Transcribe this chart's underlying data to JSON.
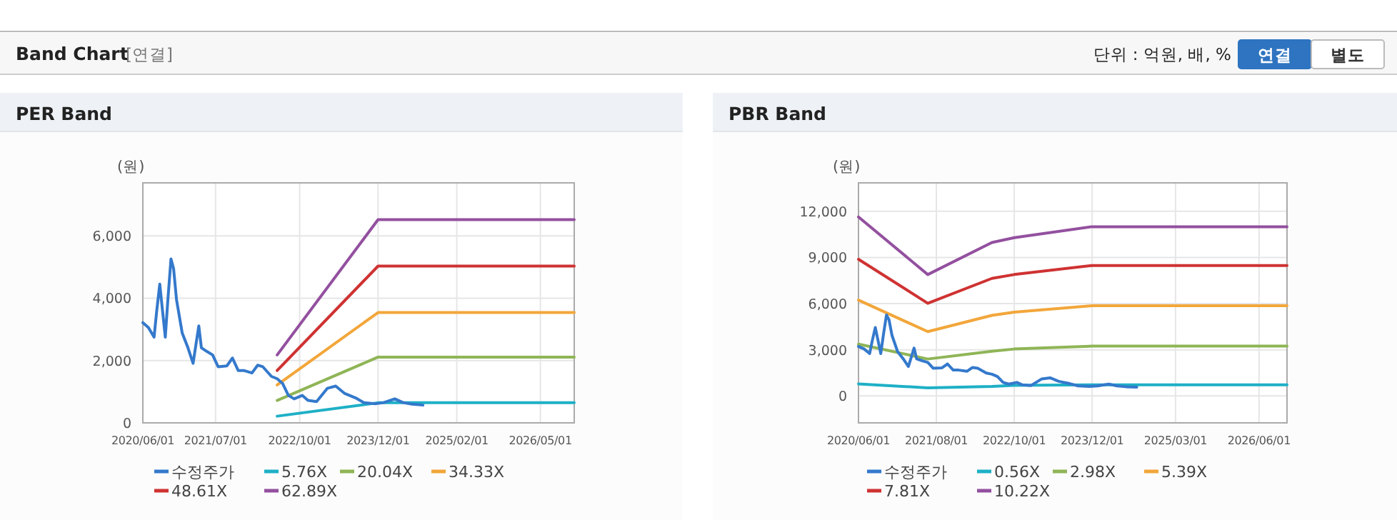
{
  "chart_data": [
    {
      "type": "other",
      "title": "Band Chart",
      "subtitle": "[연결]",
      "annotations": [
        "단위 : 억원, 배, %",
        "연결",
        "별도"
      ]
    },
    {
      "type": "line",
      "title": "PER Band",
      "ylabel": "(원)",
      "grid": true,
      "legend": "bottom",
      "xlim": [
        "2020-06-01",
        "2026-11-01"
      ],
      "xticks": [
        {
          "value": "2020-06-01",
          "label": "2020/06/01"
        },
        {
          "value": "2021-07-01",
          "label": "2021/07/01"
        },
        {
          "value": "2022-10-01",
          "label": "2022/10/01"
        },
        {
          "value": "2023-12-01",
          "label": "2023/12/01"
        },
        {
          "value": "2025-02-01",
          "label": "2025/02/01"
        },
        {
          "value": "2026-05-01",
          "label": "2026/05/01"
        }
      ],
      "ylim": [
        0,
        7700
      ],
      "yticks": [
        0,
        {
          "value": 2000,
          "label": "2,000"
        },
        {
          "value": 4000,
          "label": "4,000"
        },
        {
          "value": 6000,
          "label": "6,000"
        }
      ],
      "series": [
        {
          "name": "수정주가",
          "color": "#3479cc",
          "x": [
            "2020-06-01",
            "2020-07-01",
            "2020-08-01",
            "2020-08-15",
            "2020-09-01",
            "2020-09-15",
            "2020-10-01",
            "2020-10-15",
            "2020-11-01",
            "2020-11-15",
            "2020-12-01",
            "2021-01-01",
            "2021-02-01",
            "2021-03-01",
            "2021-04-01",
            "2021-04-15",
            "2021-05-15",
            "2021-06-15",
            "2021-07-15",
            "2021-09-01",
            "2021-10-01",
            "2021-11-01",
            "2021-12-01",
            "2022-01-15",
            "2022-02-15",
            "2022-03-15",
            "2022-05-01",
            "2022-06-01",
            "2022-07-01",
            "2022-08-01",
            "2022-09-01",
            "2022-10-15",
            "2022-11-15",
            "2023-01-01",
            "2023-03-01",
            "2023-04-15",
            "2023-06-01",
            "2023-08-01",
            "2023-09-15",
            "2023-11-15",
            "2024-01-01",
            "2024-03-01",
            "2024-04-15",
            "2024-06-01",
            "2024-08-01"
          ],
          "values": [
            3215,
            3060,
            2750,
            3570,
            4450,
            3650,
            2750,
            3950,
            5260,
            4950,
            3950,
            2880,
            2410,
            1910,
            3110,
            2410,
            2290,
            2180,
            1800,
            1830,
            2080,
            1680,
            1680,
            1600,
            1850,
            1800,
            1490,
            1415,
            1260,
            880,
            770,
            880,
            720,
            680,
            1110,
            1180,
            950,
            800,
            650,
            615,
            650,
            770,
            650,
            600,
            570
          ]
        },
        {
          "name": "5.76X",
          "color": "#1eb0c6",
          "x": [
            "2022-06-01",
            "2023-12-01",
            "2026-11-01"
          ],
          "values": [
            215,
            645,
            645
          ]
        },
        {
          "name": "20.04X",
          "color": "#8fb556",
          "x": [
            "2022-06-01",
            "2023-12-01",
            "2026-11-01"
          ],
          "values": [
            720,
            2110,
            2110
          ]
        },
        {
          "name": "34.33X",
          "color": "#f2a63a",
          "x": [
            "2022-06-01",
            "2023-12-01",
            "2026-11-01"
          ],
          "values": [
            1215,
            3540,
            3540
          ]
        },
        {
          "name": "48.61X",
          "color": "#cf3232",
          "x": [
            "2022-06-01",
            "2023-12-01",
            "2026-11-01"
          ],
          "values": [
            1680,
            5030,
            5030
          ]
        },
        {
          "name": "62.89X",
          "color": "#93509f",
          "x": [
            "2022-06-01",
            "2023-12-01",
            "2026-11-01"
          ],
          "values": [
            2180,
            6520,
            6520
          ]
        }
      ]
    },
    {
      "type": "line",
      "title": "PBR Band",
      "ylabel": "(원)",
      "grid": true,
      "legend": "bottom",
      "xlim": [
        "2020-06-01",
        "2026-11-01"
      ],
      "xticks": [
        {
          "value": "2020-06-01",
          "label": "2020/06/01"
        },
        {
          "value": "2021-08-01",
          "label": "2021/08/01"
        },
        {
          "value": "2022-10-01",
          "label": "2022/10/01"
        },
        {
          "value": "2023-12-01",
          "label": "2023/12/01"
        },
        {
          "value": "2025-03-01",
          "label": "2025/03/01"
        },
        {
          "value": "2026-06-01",
          "label": "2026/06/01"
        }
      ],
      "ylim": [
        -1750,
        13850
      ],
      "yticks": [
        0,
        {
          "value": 3000,
          "label": "3,000"
        },
        {
          "value": 6000,
          "label": "6,000"
        },
        {
          "value": 9000,
          "label": "9,000"
        },
        {
          "value": 12000,
          "label": "12,000"
        }
      ],
      "series": [
        {
          "name": "수정주가",
          "color": "#3479cc",
          "x": [
            "2020-06-01",
            "2020-07-01",
            "2020-08-01",
            "2020-08-15",
            "2020-09-01",
            "2020-09-15",
            "2020-10-01",
            "2020-10-15",
            "2020-11-01",
            "2020-11-15",
            "2020-12-01",
            "2021-01-01",
            "2021-02-01",
            "2021-03-01",
            "2021-04-01",
            "2021-04-15",
            "2021-05-15",
            "2021-06-15",
            "2021-07-15",
            "2021-09-01",
            "2021-10-01",
            "2021-11-01",
            "2021-12-01",
            "2022-01-15",
            "2022-02-15",
            "2022-03-15",
            "2022-05-01",
            "2022-06-01",
            "2022-07-01",
            "2022-08-01",
            "2022-09-01",
            "2022-10-15",
            "2022-11-15",
            "2023-01-01",
            "2023-03-01",
            "2023-04-15",
            "2023-06-01",
            "2023-08-01",
            "2023-09-15",
            "2023-11-15",
            "2024-01-01",
            "2024-03-01",
            "2024-04-15",
            "2024-06-01",
            "2024-08-01"
          ],
          "values": [
            3215,
            3060,
            2750,
            3570,
            4450,
            3650,
            2750,
            3950,
            5260,
            4950,
            3950,
            2880,
            2410,
            1910,
            3110,
            2410,
            2290,
            2180,
            1800,
            1830,
            2080,
            1680,
            1680,
            1600,
            1850,
            1800,
            1490,
            1415,
            1260,
            880,
            770,
            880,
            720,
            680,
            1110,
            1180,
            950,
            800,
            650,
            615,
            650,
            770,
            650,
            600,
            570
          ]
        },
        {
          "name": "0.56X",
          "color": "#1eb0c6",
          "x": [
            "2020-06-01",
            "2021-06-15",
            "2022-06-01",
            "2022-10-01",
            "2023-12-01",
            "2026-11-01"
          ],
          "values": [
            780,
            530,
            620,
            690,
            720,
            720
          ]
        },
        {
          "name": "2.98X",
          "color": "#8fb556",
          "x": [
            "2020-06-01",
            "2021-06-15",
            "2022-06-01",
            "2022-10-01",
            "2023-12-01",
            "2026-11-01"
          ],
          "values": [
            3370,
            2400,
            2900,
            3050,
            3240,
            3240
          ]
        },
        {
          "name": "5.39X",
          "color": "#f2a63a",
          "x": [
            "2020-06-01",
            "2021-06-15",
            "2022-06-01",
            "2022-10-01",
            "2023-12-01",
            "2026-11-01"
          ],
          "values": [
            6230,
            4180,
            5240,
            5450,
            5860,
            5860
          ]
        },
        {
          "name": "7.81X",
          "color": "#cf3232",
          "x": [
            "2020-06-01",
            "2021-06-15",
            "2022-06-01",
            "2022-10-01",
            "2023-12-01",
            "2026-11-01"
          ],
          "values": [
            8880,
            6020,
            7640,
            7890,
            8480,
            8480
          ]
        },
        {
          "name": "10.22X",
          "color": "#93509f",
          "x": [
            "2020-06-01",
            "2021-06-15",
            "2022-06-01",
            "2022-10-01",
            "2023-12-01",
            "2026-11-01"
          ],
          "values": [
            11630,
            7890,
            9970,
            10290,
            11000,
            11000
          ]
        }
      ]
    }
  ]
}
